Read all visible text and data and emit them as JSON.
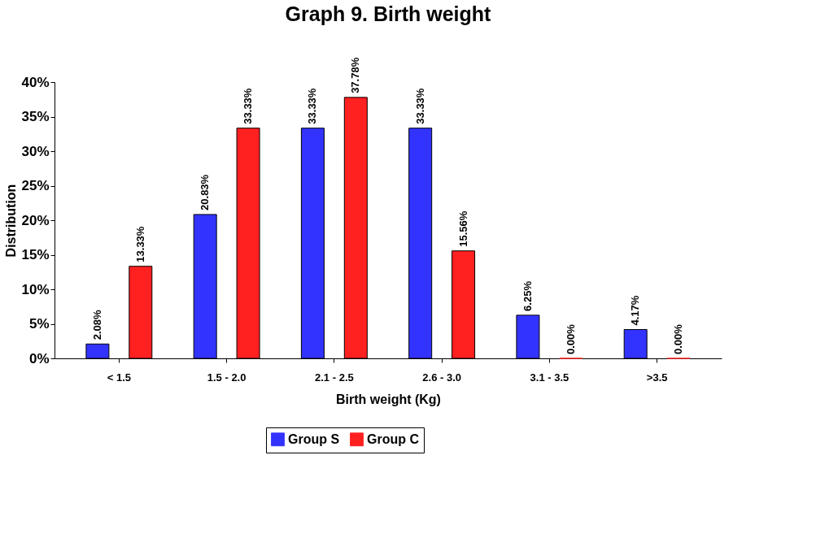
{
  "chart_data": {
    "type": "bar",
    "title": "Graph 9. Birth weight",
    "xlabel": "Birth weight (Kg)",
    "ylabel": "Distribution",
    "categories": [
      "< 1.5",
      "1.5 - 2.0",
      "2.1 - 2.5",
      "2.6 - 3.0",
      "3.1 - 3.5",
      ">3.5"
    ],
    "series": [
      {
        "name": "Group S",
        "color": "#3333ff",
        "values": [
          2.08,
          20.83,
          33.33,
          33.33,
          6.25,
          4.17
        ],
        "value_labels": [
          "2.08%",
          "20.83%",
          "33.33%",
          "33.33%",
          "6.25%",
          "4.17%"
        ]
      },
      {
        "name": "Group C",
        "color": "#ff2020",
        "values": [
          13.33,
          33.33,
          37.78,
          15.56,
          0,
          0
        ],
        "value_labels": [
          "13.33%",
          "33.33%",
          "37.78%",
          "15.56%",
          "0.00%",
          "0.00%"
        ]
      }
    ],
    "ylim": [
      0,
      40
    ],
    "yticks": [
      {
        "value": 0,
        "label": "0%"
      },
      {
        "value": 5,
        "label": "5%"
      },
      {
        "value": 10,
        "label": "10%"
      },
      {
        "value": 15,
        "label": "15%"
      },
      {
        "value": 20,
        "label": "20%"
      },
      {
        "value": 25,
        "label": "25%"
      },
      {
        "value": 30,
        "label": "30%"
      },
      {
        "value": 35,
        "label": "35%"
      },
      {
        "value": 40,
        "label": "40%"
      }
    ],
    "grid": false,
    "legend": "bottom"
  }
}
